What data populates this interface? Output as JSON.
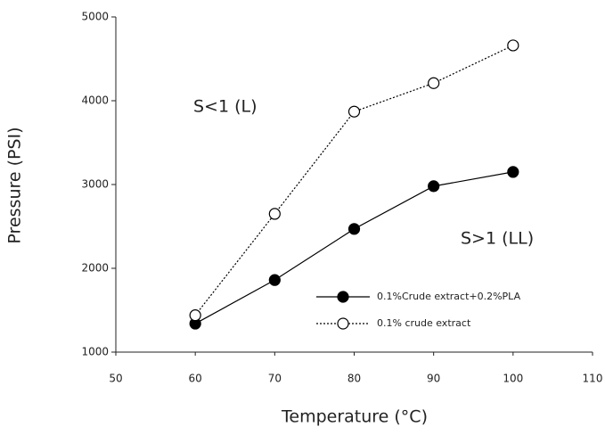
{
  "chart_data": {
    "type": "line",
    "x_label": "Temperature (°C)",
    "y_label": "Pressure (PSI)",
    "xlim": [
      50,
      110
    ],
    "xticks": [
      50,
      60,
      70,
      80,
      90,
      100,
      110
    ],
    "ylim": [
      1000,
      5000
    ],
    "yticks": [
      1000,
      2000,
      3000,
      4000,
      5000
    ],
    "grid": false,
    "legend": "lower right",
    "annotations": [
      "S<1 (L)",
      "S>1 (LL)"
    ],
    "x": [
      60,
      70,
      80,
      90,
      100
    ],
    "series": [
      {
        "name": "0.1%Crude extract+0.2%PLA",
        "color": "#000000",
        "marker": "filled",
        "line_style": "solid",
        "values": [
          1340,
          1860,
          2470,
          2980,
          3150
        ]
      },
      {
        "name": "0.1% crude extract",
        "color": "#000000",
        "marker": "open",
        "line_style": "dotted",
        "values": [
          1440,
          2650,
          3870,
          4210,
          4660
        ]
      }
    ]
  }
}
